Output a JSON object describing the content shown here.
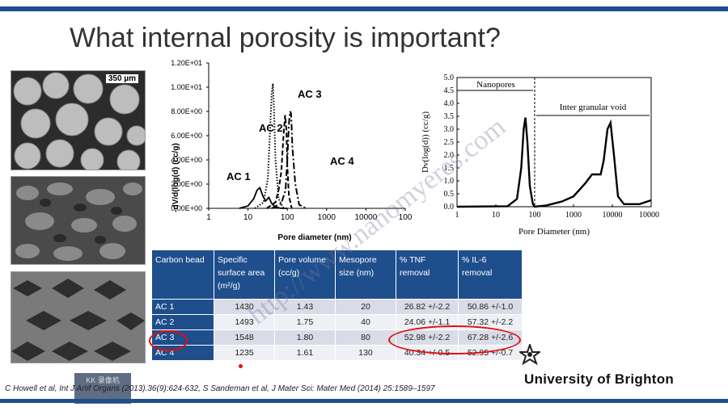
{
  "slide": {
    "title": "What internal porosity is important?",
    "scale_label": "350 µm",
    "footer": "C Howell et al, Int J Artif Organs (2013).36(9):624-632, S Sandeman et al, J Mater Sci: Mater Med (2014) 25:1589–1597",
    "university": "University of Brighton",
    "watermark": "http://www.nanomyeres.com",
    "logo_text": "KK 录像机"
  },
  "chart_data": [
    {
      "type": "line",
      "ylabel": "-dV/d(log(d) (cc/g)",
      "xlabel": "Pore diameter (nm)",
      "yticks": [
        "0.00E+00",
        "2.00E+00",
        "4.00E+00",
        "6.00E+00",
        "8.00E+00",
        "1.00E+01",
        "1.20E+01"
      ],
      "ylim": [
        0,
        12
      ],
      "xticks": [
        "1",
        "10",
        "100",
        "1000",
        "10000",
        "100"
      ],
      "xlim_log": [
        1,
        100000
      ],
      "series": [
        {
          "name": "AC 1",
          "style": "solid",
          "x": [
            6,
            10,
            14,
            17,
            20,
            24,
            28,
            34,
            40,
            50,
            70,
            100
          ],
          "y": [
            0,
            0.2,
            0.8,
            1.5,
            1.7,
            1.0,
            0.6,
            0.9,
            0.4,
            0.1,
            0,
            0
          ]
        },
        {
          "name": "AC 2",
          "style": "dotted",
          "x": [
            15,
            25,
            32,
            36,
            40,
            43,
            46,
            50,
            60,
            80
          ],
          "y": [
            0,
            0.5,
            2.5,
            6,
            9.5,
            10.3,
            8,
            4,
            0.8,
            0
          ]
        },
        {
          "name": "AC 3",
          "style": "dashed",
          "x": [
            30,
            50,
            60,
            70,
            80,
            88,
            95,
            100,
            110,
            130
          ],
          "y": [
            0,
            0.5,
            1.5,
            3,
            6,
            7.7,
            6.5,
            3.5,
            1,
            0
          ]
        },
        {
          "name": "AC 4",
          "style": "dashdot",
          "x": [
            40,
            70,
            90,
            100,
            110,
            118,
            125,
            135,
            160,
            200,
            300
          ],
          "y": [
            0,
            0.4,
            1.5,
            4,
            7,
            8.0,
            7.8,
            5,
            2,
            0.3,
            0
          ]
        }
      ],
      "annotations": [
        "AC 1",
        "AC 2",
        "AC 3",
        "AC 4"
      ]
    },
    {
      "type": "line",
      "ylabel": "Dv(log(d)) (cc/g)",
      "xlabel": "Pore Diameter (nm)",
      "yticks": [
        "0.0",
        "0.5",
        "1.0",
        "1.5",
        "2.0",
        "2.5",
        "3.0",
        "3.5",
        "4.0",
        "4.5",
        "5.0"
      ],
      "ylim": [
        0,
        5
      ],
      "xticks": [
        "1",
        "10",
        "100",
        "1000",
        "10000",
        "100000"
      ],
      "xlim_log": [
        1,
        100000
      ],
      "annotations": [
        "Nanopores",
        "Inter granular void"
      ],
      "series": [
        {
          "x": [
            1,
            20,
            35,
            45,
            52,
            58,
            65,
            75,
            90,
            100,
            200,
            500,
            1000,
            2000,
            3000,
            5000,
            6000,
            7500,
            9000,
            11000,
            14000,
            20000,
            50000,
            100000
          ],
          "y": [
            0.0,
            0.02,
            0.3,
            1.5,
            3.0,
            3.45,
            2.5,
            0.8,
            0.1,
            0.0,
            0.05,
            0.2,
            0.4,
            0.9,
            1.25,
            1.25,
            1.8,
            3.0,
            3.25,
            2.0,
            0.4,
            0.1,
            0.1,
            0.25
          ]
        }
      ]
    },
    {
      "type": "table",
      "columns": [
        "Carbon bead",
        "Specific surface area (m²/g)",
        "Pore volume (cc/g)",
        "Mesopore size (nm)",
        "% TNF removal",
        "% IL-6 removal"
      ],
      "rows": [
        [
          "AC 1",
          "1430",
          "1.43",
          "20",
          "26.82 +/-2.2",
          "50.86 +/-1.0"
        ],
        [
          "AC 2",
          "1493",
          "1.75",
          "40",
          "24.06 +/-1.1",
          "57.32 +/-2.2"
        ],
        [
          "AC 3",
          "1548",
          "1.80",
          "80",
          "52.98 +/-2.2",
          "67.28 +/-2.6"
        ],
        [
          "AC 4",
          "1235",
          "1.61",
          "130",
          "40.34 +/-0.5",
          "52.95 +/-0.7"
        ]
      ]
    }
  ],
  "colors": {
    "accent": "#1f4e8c",
    "highlight": "#e01010"
  }
}
